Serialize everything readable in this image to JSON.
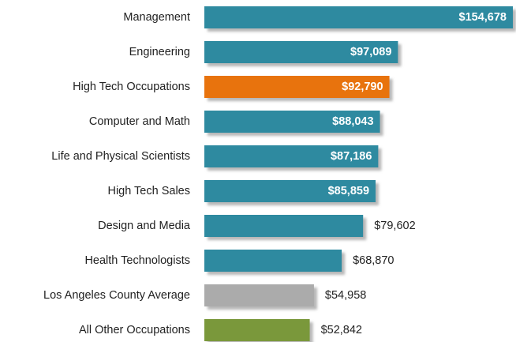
{
  "chart_data": {
    "type": "hbar",
    "categories": [
      "Management",
      "Engineering",
      "High Tech Occupations",
      "Computer and Math",
      "Life and Physical Scientists",
      "High Tech Sales",
      "Design and Media",
      "Health Technologists",
      "Los Angeles County Average",
      "All Other Occupations"
    ],
    "values": [
      154678,
      97089,
      92790,
      88043,
      87186,
      85859,
      79602,
      68870,
      54958,
      52842
    ],
    "value_labels": [
      "$154,678",
      "$97,089",
      "$92,790",
      "$88,043",
      "$87,186",
      "$85,859",
      "$79,602",
      "$68,870",
      "$54,958",
      "$52,842"
    ],
    "colors": [
      "#2f8aa0",
      "#2f8aa0",
      "#e8730e",
      "#2f8aa0",
      "#2f8aa0",
      "#2f8aa0",
      "#2f8aa0",
      "#2f8aa0",
      "#ababab",
      "#7a983a"
    ]
  }
}
